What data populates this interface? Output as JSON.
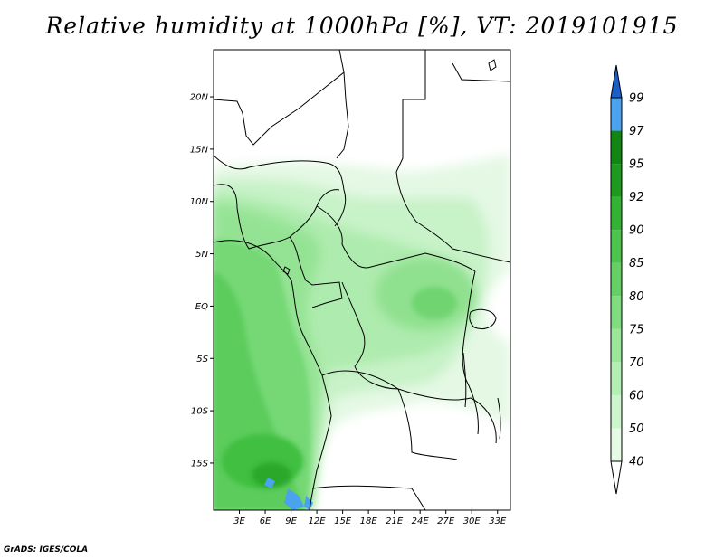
{
  "title": "Relative humidity at 1000hPa [%], VT: 2019101915",
  "credit": "GrADS: IGES/COLA",
  "map": {
    "lat_range": [
      -19.5,
      24.5
    ],
    "lon_range": [
      0,
      34.5
    ],
    "lat_ticks": [
      {
        "value": 20,
        "label": "20N"
      },
      {
        "value": 15,
        "label": "15N"
      },
      {
        "value": 10,
        "label": "10N"
      },
      {
        "value": 5,
        "label": "5N"
      },
      {
        "value": 0,
        "label": "EQ"
      },
      {
        "value": -5,
        "label": "5S"
      },
      {
        "value": -10,
        "label": "10S"
      },
      {
        "value": -15,
        "label": "15S"
      }
    ],
    "lon_ticks": [
      {
        "value": 3,
        "label": "3E"
      },
      {
        "value": 6,
        "label": "6E"
      },
      {
        "value": 9,
        "label": "9E"
      },
      {
        "value": 12,
        "label": "12E"
      },
      {
        "value": 15,
        "label": "15E"
      },
      {
        "value": 18,
        "label": "18E"
      },
      {
        "value": 21,
        "label": "21E"
      },
      {
        "value": 24,
        "label": "24E"
      },
      {
        "value": 27,
        "label": "27E"
      },
      {
        "value": 30,
        "label": "30E"
      },
      {
        "value": 33,
        "label": "33E"
      }
    ]
  },
  "colorbar": {
    "levels": [
      "40",
      "50",
      "60",
      "70",
      "75",
      "80",
      "85",
      "90",
      "92",
      "95",
      "97",
      "99"
    ],
    "colors": [
      "#ffffff",
      "#e6fbe6",
      "#cdf5cd",
      "#b3efb3",
      "#9ae79a",
      "#7fdc7f",
      "#66d066",
      "#4cc34c",
      "#33b333",
      "#1e9b1e",
      "#128612",
      "#4ba3f0",
      "#2e7fe0",
      "#1a5ec8"
    ]
  }
}
